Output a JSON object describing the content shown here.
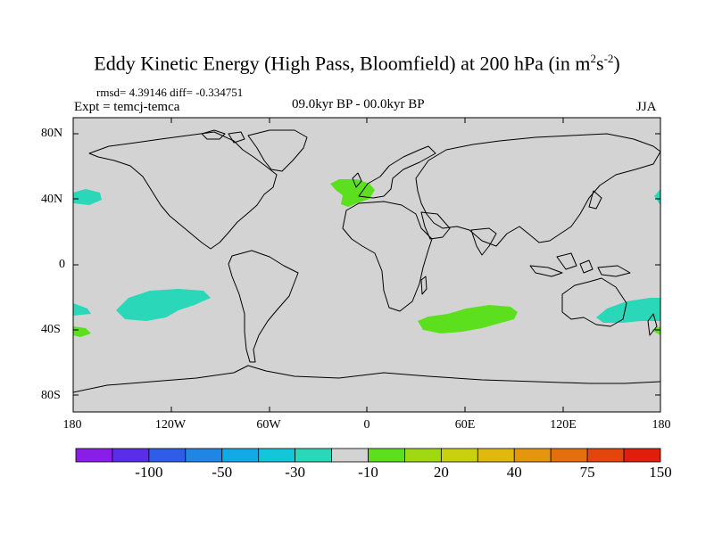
{
  "title": {
    "main": "Eddy Kinetic Energy (High Pass, Bloomfield) at 200 hPa (in m",
    "sup1": "2",
    "mid": "s",
    "sup2": "-2",
    "end": ")"
  },
  "stats": "rmsd= 4.39146 diff= -0.334751",
  "expt": "Expt = temcj-temca",
  "period": "09.0kyr BP - 00.0kyr BP",
  "season": "JJA",
  "map": {
    "background_color": "#d3d3d3",
    "lat_labels": [
      "80N",
      "40N",
      "0",
      "40S",
      "80S"
    ],
    "lon_labels": [
      "180",
      "120W",
      "60W",
      "0",
      "60E",
      "120E",
      "180"
    ],
    "anomaly_regions": [
      {
        "name": "north-pacific-west-cyan",
        "color": "#2ad7b9"
      },
      {
        "name": "north-pacific-east-cyan",
        "color": "#2ad7b9"
      },
      {
        "name": "south-pacific-cyan",
        "color": "#2ad7b9"
      },
      {
        "name": "south-pacific-west-edge-cyan",
        "color": "#2ad7b9"
      },
      {
        "name": "tasman-cyan",
        "color": "#2ad7b9"
      },
      {
        "name": "europe-green",
        "color": "#5ce01e"
      },
      {
        "name": "south-indian-ocean-green",
        "color": "#5ce01e"
      },
      {
        "name": "south-west-edge-green",
        "color": "#5ce01e"
      },
      {
        "name": "south-east-edge-green",
        "color": "#5ce01e"
      }
    ]
  },
  "colorbar": {
    "colors": [
      "#8a1ee6",
      "#5a2ee8",
      "#2e5de8",
      "#1f86e6",
      "#12a9e6",
      "#14c6d9",
      "#2ad7b9",
      "#d3d3d3",
      "#5ce01e",
      "#a0d814",
      "#c8d010",
      "#e0b80e",
      "#e6960e",
      "#e3700d",
      "#e3460d",
      "#e01f0a"
    ],
    "labels": [
      "-100",
      "-50",
      "-30",
      "-10",
      "20",
      "40",
      "75",
      "150"
    ]
  }
}
